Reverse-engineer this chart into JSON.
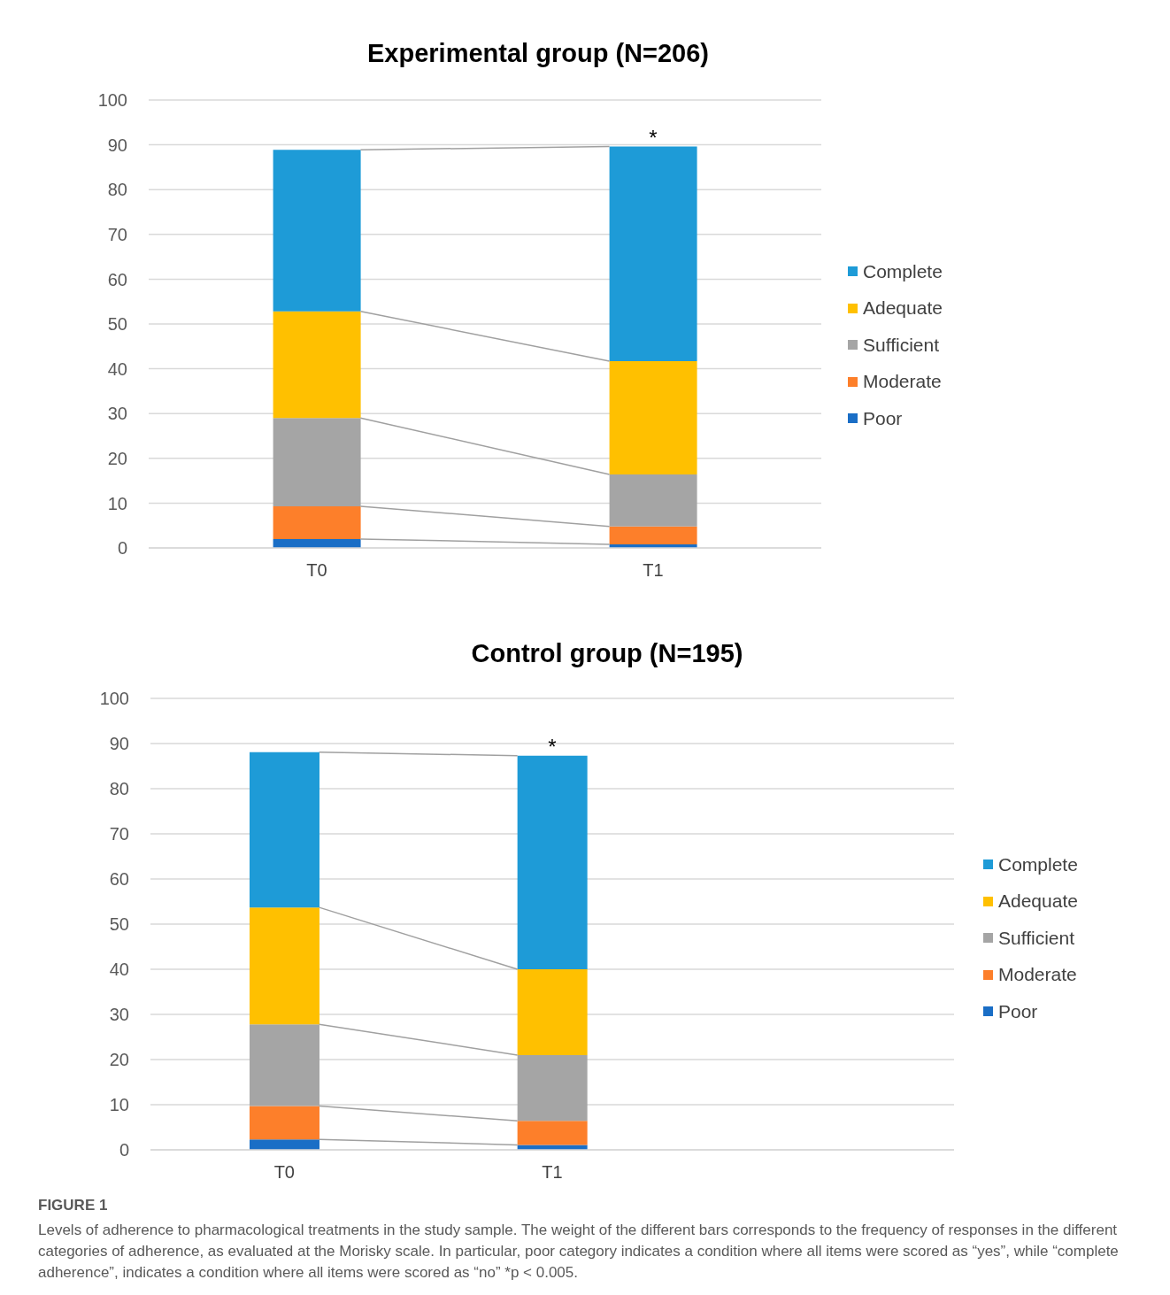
{
  "chart_data": [
    {
      "type": "bar",
      "title": "Experimental group (N=206)",
      "categories": [
        "T0",
        "T1"
      ],
      "stacked": true,
      "ylim": [
        0,
        100
      ],
      "yticks": [
        0,
        10,
        20,
        30,
        40,
        50,
        60,
        70,
        80,
        90,
        100
      ],
      "grid": "y",
      "legend": "right",
      "series": [
        {
          "name": "Poor",
          "color": "#1a6ec6",
          "values": [
            2.0,
            0.8
          ]
        },
        {
          "name": "Moderate",
          "color": "#fd7f2a",
          "values": [
            7.3,
            4.0
          ]
        },
        {
          "name": "Sufficient",
          "color": "#a5a5a5",
          "values": [
            19.7,
            11.6
          ]
        },
        {
          "name": "Adequate",
          "color": "#ffc000",
          "values": [
            23.8,
            25.3
          ]
        },
        {
          "name": "Complete",
          "color": "#1e9bd7",
          "values": [
            36.1,
            47.9
          ]
        }
      ],
      "annotations": [
        {
          "text": "*",
          "x": "T1",
          "y": 89.6
        }
      ]
    },
    {
      "type": "bar",
      "title": "Control group (N=195)",
      "categories": [
        "T0",
        "T1",
        null
      ],
      "stacked": true,
      "ylim": [
        0,
        100
      ],
      "yticks": [
        0,
        10,
        20,
        30,
        40,
        50,
        60,
        70,
        80,
        90,
        100
      ],
      "grid": "y",
      "legend": "right",
      "series": [
        {
          "name": "Poor",
          "color": "#1a6ec6",
          "values": [
            2.3,
            1.1,
            null
          ]
        },
        {
          "name": "Moderate",
          "color": "#fd7f2a",
          "values": [
            7.4,
            5.3,
            null
          ]
        },
        {
          "name": "Sufficient",
          "color": "#a5a5a5",
          "values": [
            18.1,
            14.6,
            null
          ]
        },
        {
          "name": "Adequate",
          "color": "#ffc000",
          "values": [
            25.9,
            19.0,
            null
          ]
        },
        {
          "name": "Complete",
          "color": "#1e9bd7",
          "values": [
            34.4,
            47.3,
            null
          ]
        }
      ],
      "annotations": [
        {
          "text": "*",
          "x": "T1",
          "y": 87.3
        },
        "FIGURE 1",
        "Levels of adherence to pharmacological treatments in the study sample. The weight of the different bars corresponds to the frequency of responses in the different categories of adherence, as evaluated at the Morisky scale. In particular, poor category indicates a condition where all items were scored as “yes”, while “complete adherence”, indicates a condition where all items were scored as “no” *p < 0.005."
      ]
    }
  ]
}
